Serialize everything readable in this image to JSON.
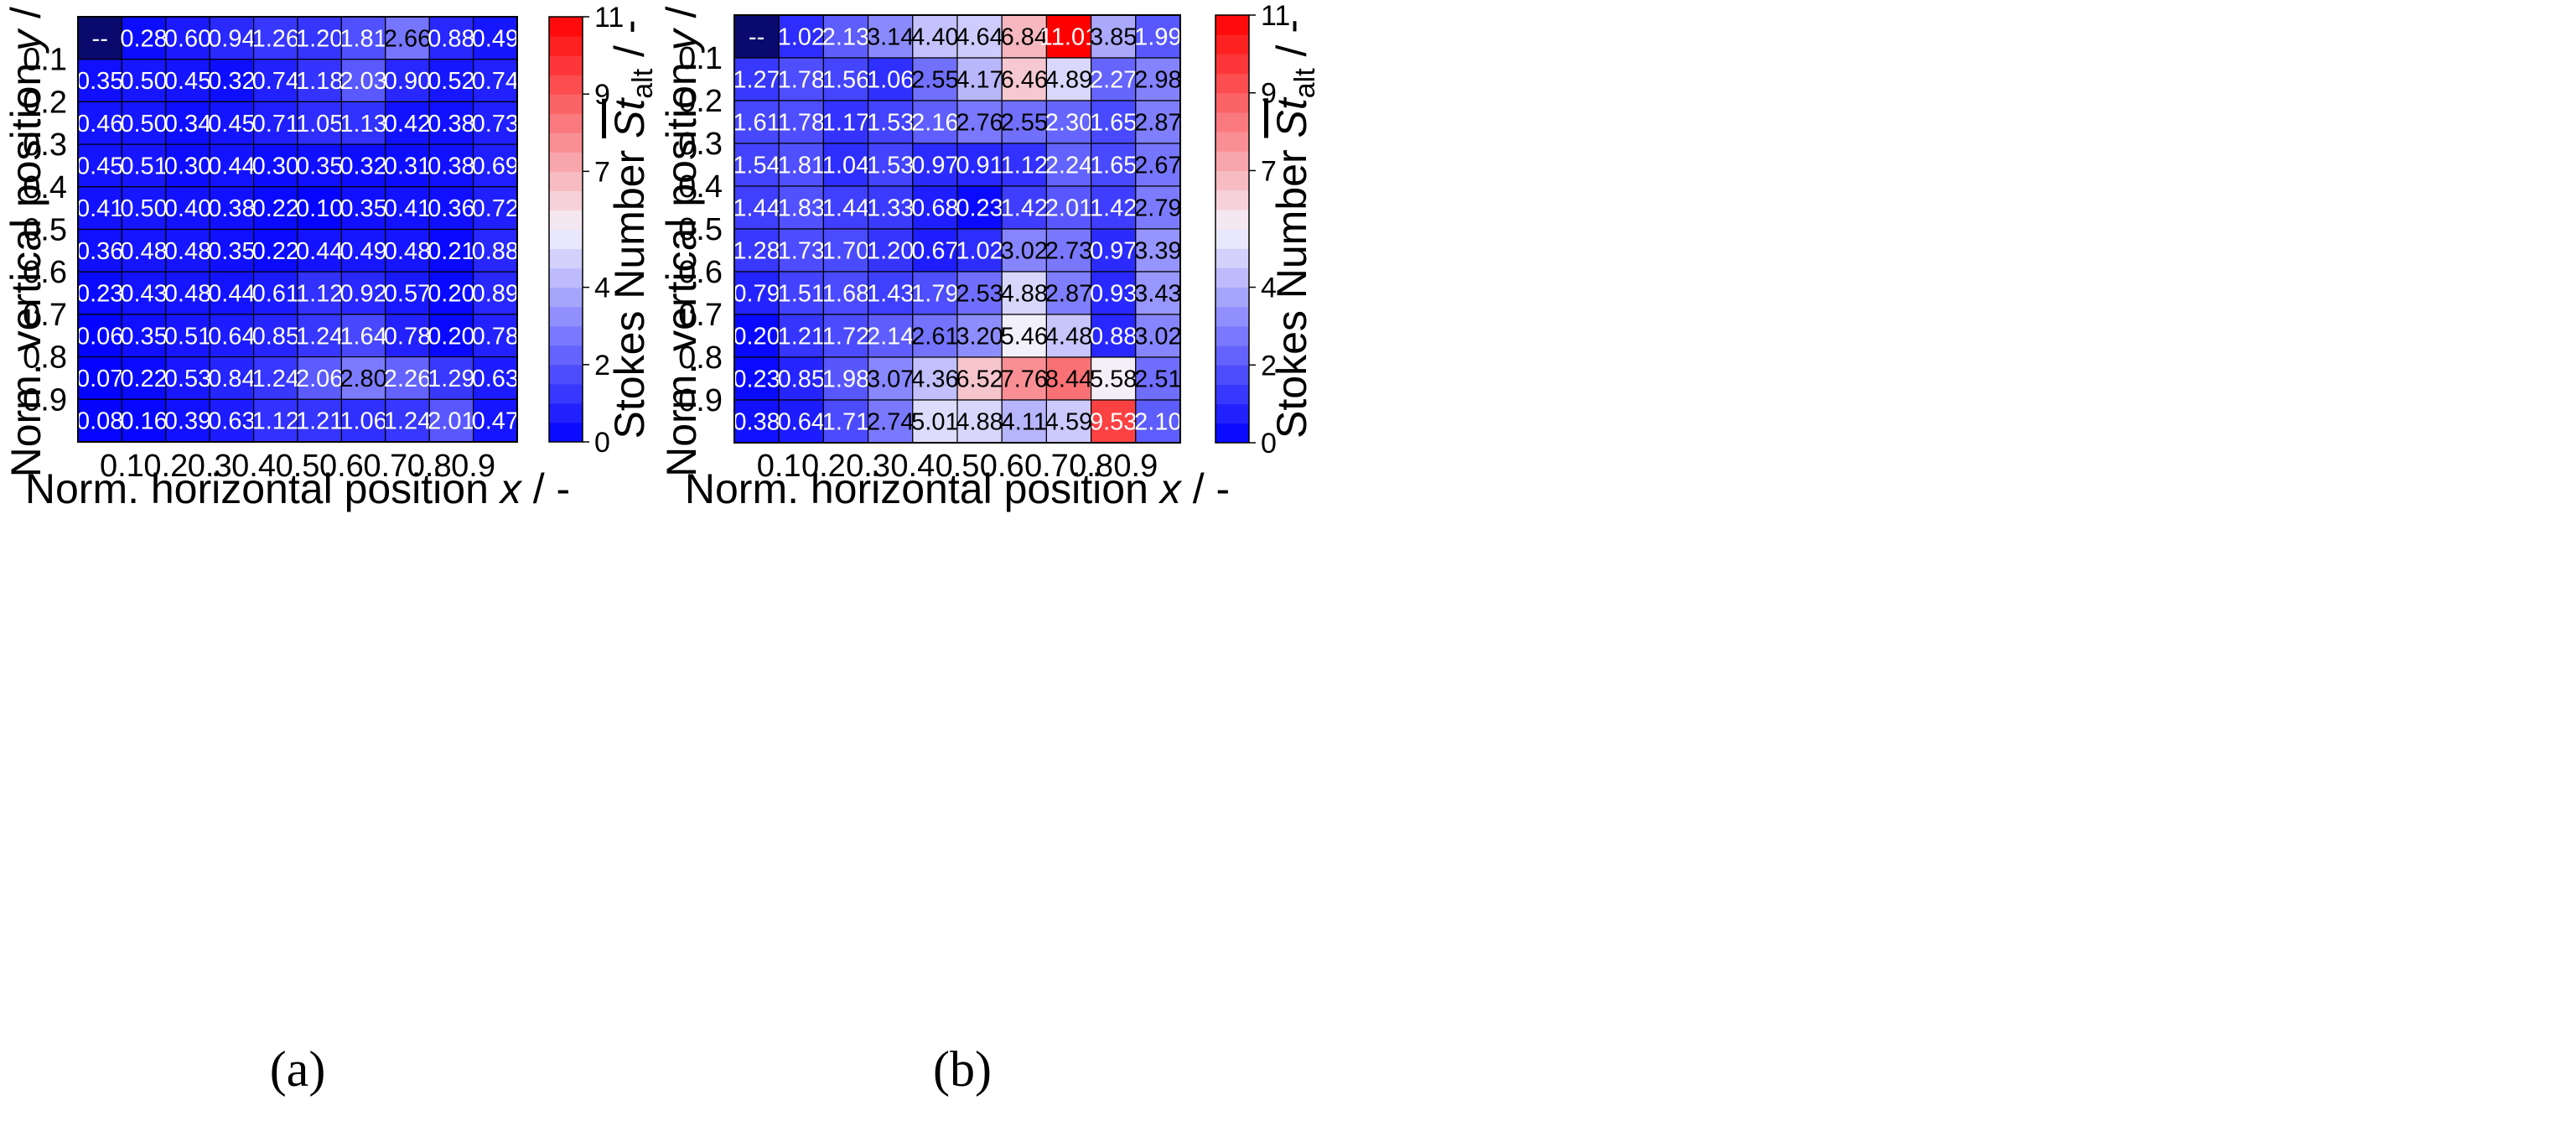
{
  "chart_data": [
    {
      "type": "heatmap",
      "panel_label": "(a)",
      "xlabel": "Norm. horizontal position x / -",
      "ylabel": "Norm. vertical position y / -",
      "xticks": [
        "0.1",
        "0.2",
        "0.3",
        "0.4",
        "0.5",
        "0.6",
        "0.7",
        "0.8",
        "0.9"
      ],
      "yticks": [
        "0.1",
        "0.2",
        "0.3",
        "0.4",
        "0.5",
        "0.6",
        "0.7",
        "0.8",
        "0.9"
      ],
      "colorbar": {
        "label": "Stokes Number",
        "symbol": "St",
        "subscript": "alt",
        "unit": " / -",
        "min": 0,
        "max": 11,
        "ticks": [
          "0",
          "2",
          "4",
          "7",
          "9",
          "11"
        ],
        "low_color": "#0000ff",
        "mid_color": "#f4f2fb",
        "high_color": "#ff0000"
      },
      "missing_label": "--",
      "values": [
        [
          null,
          0.28,
          0.6,
          0.94,
          1.26,
          1.2,
          1.81,
          2.66,
          0.88,
          0.49
        ],
        [
          0.35,
          0.5,
          0.45,
          0.32,
          0.74,
          1.18,
          2.03,
          0.9,
          0.52,
          0.74
        ],
        [
          0.46,
          0.5,
          0.34,
          0.45,
          0.71,
          1.05,
          1.13,
          0.42,
          0.38,
          0.73
        ],
        [
          0.45,
          0.51,
          0.3,
          0.44,
          0.3,
          0.35,
          0.32,
          0.31,
          0.38,
          0.69
        ],
        [
          0.41,
          0.5,
          0.4,
          0.38,
          0.22,
          0.1,
          0.35,
          0.41,
          0.36,
          0.72
        ],
        [
          0.36,
          0.48,
          0.48,
          0.35,
          0.22,
          0.44,
          0.49,
          0.48,
          0.21,
          0.88
        ],
        [
          0.23,
          0.43,
          0.48,
          0.44,
          0.61,
          1.12,
          0.92,
          0.57,
          0.2,
          0.89
        ],
        [
          0.06,
          0.35,
          0.51,
          0.64,
          0.85,
          1.24,
          1.64,
          0.78,
          0.2,
          0.78
        ],
        [
          0.07,
          0.22,
          0.53,
          0.84,
          1.24,
          2.06,
          2.8,
          2.26,
          1.29,
          0.63
        ],
        [
          0.08,
          0.16,
          0.39,
          0.63,
          1.12,
          1.21,
          1.06,
          1.24,
          2.01,
          0.47
        ]
      ]
    },
    {
      "type": "heatmap",
      "panel_label": "(b)",
      "xlabel": "Norm. horizontal position x / -",
      "ylabel": "Norm. vertical position y / -",
      "xticks": [
        "0.1",
        "0.2",
        "0.3",
        "0.4",
        "0.5",
        "0.6",
        "0.7",
        "0.8",
        "0.9"
      ],
      "yticks": [
        "0.1",
        "0.2",
        "0.3",
        "0.4",
        "0.5",
        "0.6",
        "0.7",
        "0.8",
        "0.9"
      ],
      "colorbar": {
        "label": "Stokes Number",
        "symbol": "St",
        "subscript": "alt",
        "unit": " / -",
        "min": 0,
        "max": 11,
        "ticks": [
          "0",
          "2",
          "4",
          "7",
          "9",
          "11"
        ],
        "low_color": "#0000ff",
        "mid_color": "#f4f2fb",
        "high_color": "#ff0000"
      },
      "missing_label": "--",
      "values": [
        [
          null,
          1.02,
          2.13,
          3.14,
          4.4,
          4.64,
          6.84,
          11.01,
          3.85,
          1.99
        ],
        [
          1.27,
          1.78,
          1.56,
          1.06,
          2.55,
          4.17,
          6.46,
          4.89,
          2.27,
          2.98
        ],
        [
          1.61,
          1.78,
          1.17,
          1.53,
          2.16,
          2.76,
          2.55,
          2.3,
          1.65,
          2.87
        ],
        [
          1.54,
          1.81,
          1.04,
          1.53,
          0.97,
          0.91,
          1.12,
          2.24,
          1.65,
          2.67
        ],
        [
          1.44,
          1.83,
          1.44,
          1.33,
          0.68,
          0.23,
          1.42,
          2.01,
          1.42,
          2.79
        ],
        [
          1.28,
          1.73,
          1.7,
          1.2,
          0.67,
          1.02,
          3.02,
          2.73,
          0.97,
          3.39
        ],
        [
          0.79,
          1.51,
          1.68,
          1.43,
          1.79,
          2.53,
          4.88,
          2.87,
          0.93,
          3.43
        ],
        [
          0.2,
          1.21,
          1.72,
          2.14,
          2.61,
          3.2,
          5.46,
          4.48,
          0.88,
          3.02
        ],
        [
          0.23,
          0.85,
          1.98,
          3.07,
          4.36,
          6.52,
          7.76,
          8.44,
          5.58,
          2.51
        ],
        [
          0.38,
          0.64,
          1.71,
          2.74,
          5.01,
          4.88,
          4.11,
          4.59,
          9.53,
          2.1
        ]
      ]
    }
  ]
}
